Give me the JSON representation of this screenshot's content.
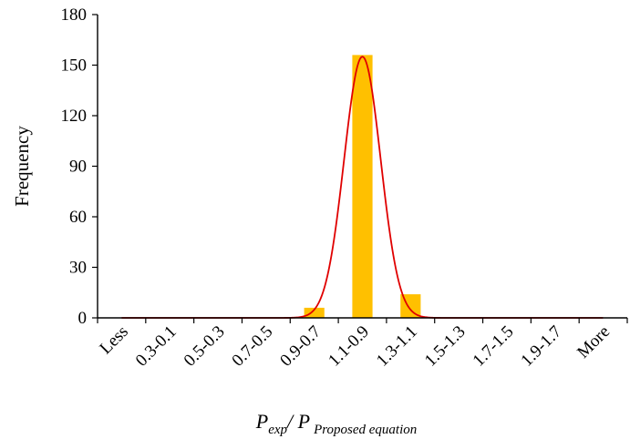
{
  "chart_data": {
    "type": "bar",
    "categories": [
      "Less",
      "0.3-0.1",
      "0.5-0.3",
      "0.7-0.5",
      "0.9-0.7",
      "1.1-0.9",
      "1.3-1.1",
      "1.5-1.3",
      "1.7-1.5",
      "1.9-1.7",
      "More"
    ],
    "values": [
      0,
      0,
      0,
      0,
      6,
      156,
      14,
      0,
      0,
      0,
      0
    ],
    "fitted_curve": {
      "type": "normal",
      "peak": 155,
      "peak_category_index": 5,
      "sd_in_categories": 0.38
    },
    "xlabel": {
      "main": "P",
      "sub1": "exp",
      "sep": "/ P",
      "sub2": "Proposed equation"
    },
    "ylabel": "Frequency",
    "ylim": [
      0,
      180
    ],
    "yticks": [
      0,
      30,
      60,
      90,
      120,
      150,
      180
    ],
    "grid": false,
    "colors": {
      "bar": "#FFC000",
      "curve": "#E00000",
      "axis": "#000000"
    }
  }
}
